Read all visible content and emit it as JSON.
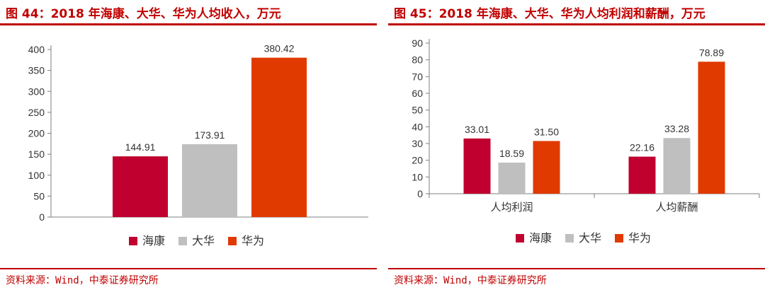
{
  "charts": [
    {
      "title": "图 44：2018 年海康、大华、华为人均收入，万元",
      "source": "资料来源：Wind，中泰证券研究所"
    },
    {
      "title": "图 45：2018 年海康、大华、华为人均利润和薪酬，万元",
      "source": "资料来源：Wind，中泰证券研究所"
    }
  ],
  "chart_data": [
    {
      "type": "bar",
      "categories": [
        ""
      ],
      "series": [
        {
          "name": "海康",
          "values": [
            144.91
          ],
          "color": "#c0002f"
        },
        {
          "name": "大华",
          "values": [
            173.91
          ],
          "color": "#bfbfbf"
        },
        {
          "name": "华为",
          "values": [
            380.42
          ],
          "color": "#e03a00"
        }
      ],
      "ylim": [
        0,
        400
      ],
      "yticks": [
        "0",
        "50",
        "100",
        "150",
        "200",
        "250",
        "300",
        "350",
        "400"
      ],
      "data_labels": [
        [
          "144.91"
        ],
        [
          "173.91"
        ],
        [
          "380.42"
        ]
      ],
      "legend_position": "bottom",
      "grid": false
    },
    {
      "type": "bar",
      "categories": [
        "人均利润",
        "人均薪酬"
      ],
      "series": [
        {
          "name": "海康",
          "values": [
            33.01,
            22.16
          ],
          "color": "#c0002f"
        },
        {
          "name": "大华",
          "values": [
            18.59,
            33.28
          ],
          "color": "#bfbfbf"
        },
        {
          "name": "华为",
          "values": [
            31.5,
            78.89
          ],
          "color": "#e03a00"
        }
      ],
      "ylim": [
        0,
        90
      ],
      "yticks": [
        "0",
        "10",
        "20",
        "30",
        "40",
        "50",
        "60",
        "70",
        "80",
        "90"
      ],
      "data_labels": [
        [
          "33.01",
          "22.16"
        ],
        [
          "18.59",
          "33.28"
        ],
        [
          "31.50",
          "78.89"
        ]
      ],
      "legend_position": "bottom",
      "grid": false
    }
  ]
}
